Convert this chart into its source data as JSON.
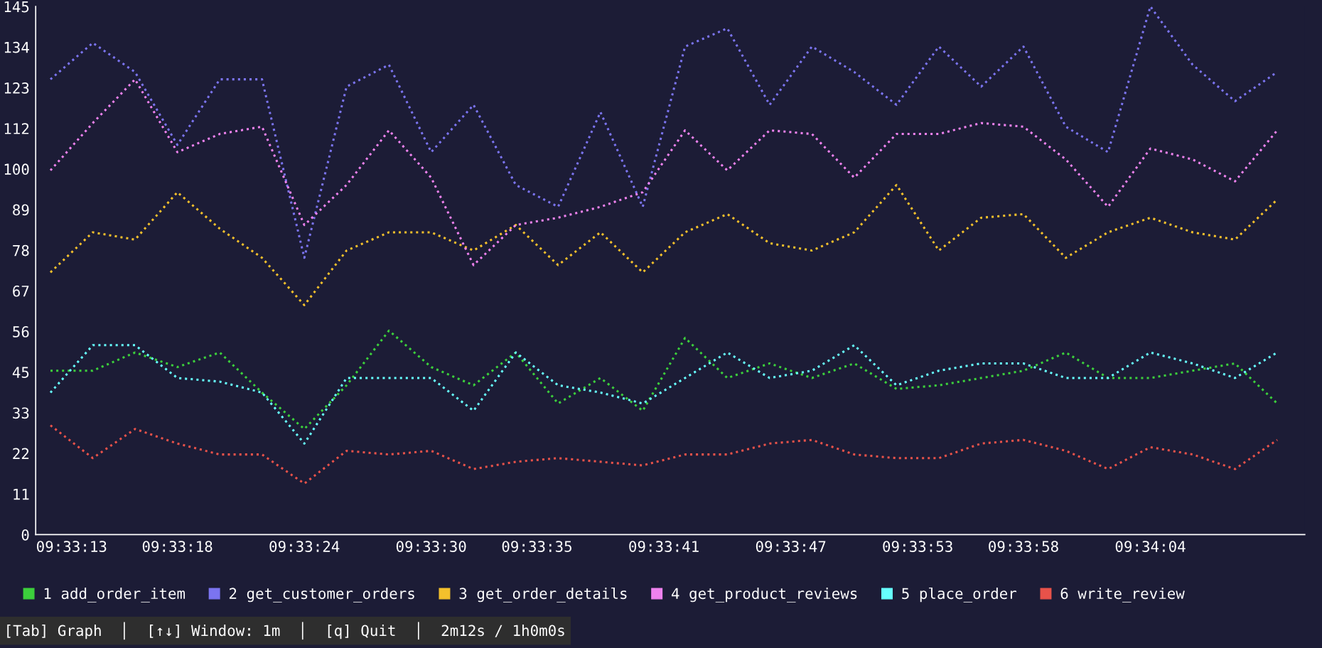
{
  "chart_data": {
    "type": "line",
    "line_style": "dotted",
    "marker": "none",
    "grid": false,
    "legend": "bottom",
    "annotations": [
      "[Tab] Graph  │  [↑↓] Window: 1m  │  [q] Quit  │  2m12s / 1h0m0s"
    ],
    "x": [
      9.553333,
      9.553889,
      9.554444,
      9.555,
      9.555556,
      9.556111,
      9.556667,
      9.557222,
      9.557778,
      9.558333,
      9.558889,
      9.559444,
      9.56,
      9.560556,
      9.561111,
      9.561667,
      9.562222,
      9.562778,
      9.563333,
      9.563889,
      9.564444,
      9.565,
      9.565556,
      9.566111,
      9.566667,
      9.567222,
      9.567778,
      9.568333,
      9.568889,
      9.569444
    ],
    "xlim": [
      9.553139,
      9.569806
    ],
    "xticks": [
      {
        "value": 9.553611,
        "label": "09:33:13"
      },
      {
        "value": 9.555,
        "label": "09:33:18"
      },
      {
        "value": 9.556667,
        "label": "09:33:24"
      },
      {
        "value": 9.558333,
        "label": "09:33:30"
      },
      {
        "value": 9.559722,
        "label": "09:33:35"
      },
      {
        "value": 9.561389,
        "label": "09:33:41"
      },
      {
        "value": 9.563056,
        "label": "09:33:47"
      },
      {
        "value": 9.564722,
        "label": "09:33:53"
      },
      {
        "value": 9.566111,
        "label": "09:33:58"
      },
      {
        "value": 9.567778,
        "label": "09:34:04"
      }
    ],
    "ylim": [
      0,
      145
    ],
    "yticks": [
      0,
      {
        "value": 11.154,
        "label": "11"
      },
      {
        "value": 22.308,
        "label": "22"
      },
      {
        "value": 33.462,
        "label": "33"
      },
      {
        "value": 44.615,
        "label": "45"
      },
      {
        "value": 55.769,
        "label": "56"
      },
      {
        "value": 66.923,
        "label": "67"
      },
      {
        "value": 78.077,
        "label": "78"
      },
      {
        "value": 89.231,
        "label": "89"
      },
      {
        "value": 100.385,
        "label": "100"
      },
      {
        "value": 111.538,
        "label": "112"
      },
      {
        "value": 122.692,
        "label": "123"
      },
      {
        "value": 133.846,
        "label": "134"
      },
      145
    ],
    "series": [
      {
        "name": "1 add_order_item",
        "color": "#3ccf3c",
        "values": [
          45,
          45,
          50,
          46,
          50,
          39,
          29,
          41,
          56,
          46,
          41,
          50,
          36,
          43,
          34,
          54,
          43,
          47,
          43,
          47,
          40,
          41,
          43,
          45,
          50,
          43,
          43,
          45,
          47,
          36
        ]
      },
      {
        "name": "2 get_customer_orders",
        "color": "#7b74f0",
        "values": [
          125,
          135,
          127,
          107,
          125,
          125,
          76,
          123,
          129,
          105,
          118,
          96,
          90,
          116,
          90,
          134,
          139,
          118,
          134,
          127,
          118,
          134,
          123,
          134,
          112,
          105,
          145,
          129,
          119,
          127
        ]
      },
      {
        "name": "3 get_order_details",
        "color": "#f4c02c",
        "values": [
          72,
          83,
          81,
          94,
          84,
          76,
          63,
          78,
          83,
          83,
          78,
          85,
          74,
          83,
          72,
          83,
          88,
          80,
          78,
          83,
          96,
          78,
          87,
          88,
          76,
          83,
          87,
          83,
          81,
          92
        ]
      },
      {
        "name": "4 get_product_reviews",
        "color": "#ee82ee",
        "values": [
          100,
          113,
          125,
          105,
          110,
          112,
          85,
          96,
          111,
          98,
          74,
          85,
          87,
          90,
          94,
          111,
          100,
          111,
          110,
          98,
          110,
          110,
          113,
          112,
          103,
          90,
          106,
          103,
          97,
          111
        ]
      },
      {
        "name": "5 place_order",
        "color": "#66ffff",
        "values": [
          39,
          52,
          52,
          43,
          42,
          39,
          25,
          43,
          43,
          43,
          34,
          50,
          41,
          39,
          36,
          43,
          50,
          43,
          45,
          52,
          41,
          45,
          47,
          47,
          43,
          43,
          50,
          47,
          43,
          50
        ]
      },
      {
        "name": "6 write_review",
        "color": "#e8524a",
        "values": [
          30,
          21,
          29,
          25,
          22,
          22,
          14,
          23,
          22,
          23,
          18,
          20,
          21,
          20,
          19,
          22,
          22,
          25,
          26,
          22,
          21,
          21,
          25,
          26,
          23,
          18,
          24,
          22,
          18,
          26
        ]
      }
    ]
  }
}
